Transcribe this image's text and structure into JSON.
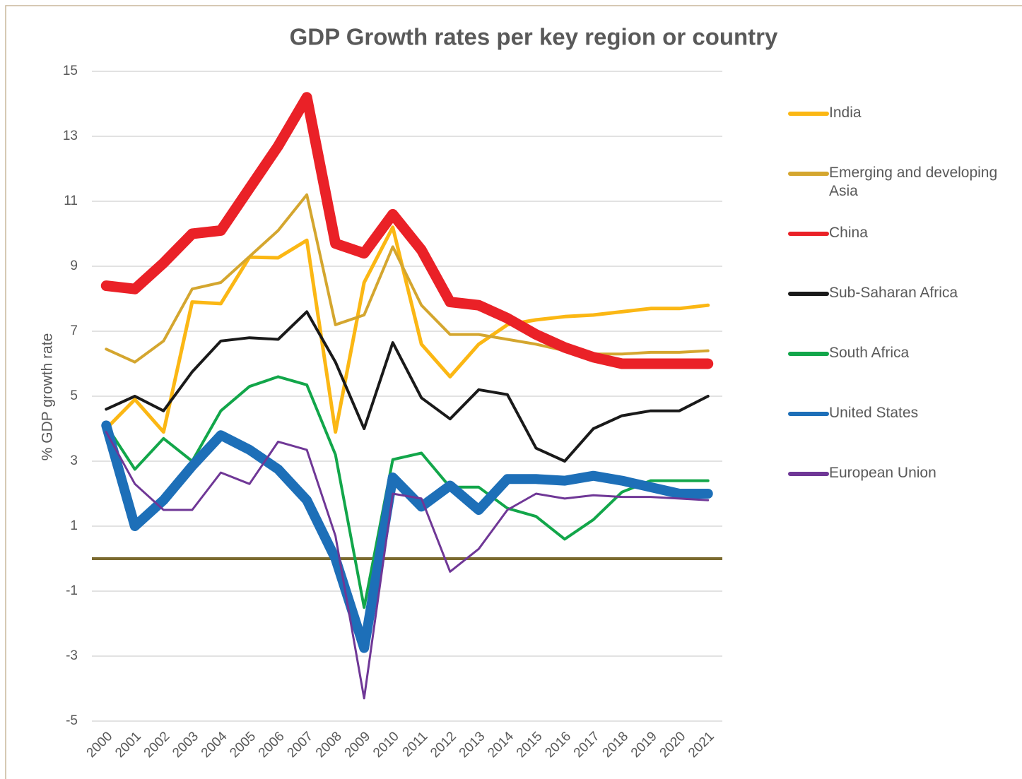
{
  "chart_data": {
    "type": "line",
    "title": "GDP Growth rates per key region or country",
    "y_label": "% GDP growth rate",
    "categories": [
      "2000",
      "2001",
      "2002",
      "2003",
      "2004",
      "2005",
      "2006",
      "2007",
      "2008",
      "2009",
      "2010",
      "2011",
      "2012",
      "2013",
      "2014",
      "2015",
      "2016",
      "2017",
      "2018",
      "2019",
      "2020",
      "2021"
    ],
    "ylim": [
      -5,
      15
    ],
    "yticks": [
      -5,
      -3,
      -1,
      1,
      3,
      5,
      7,
      9,
      11,
      13,
      15
    ],
    "grid": true,
    "reference_line": {
      "value": 0,
      "color": "#7b6a2f"
    },
    "legend": "right",
    "series": [
      {
        "name": "India",
        "color": "#fbb714",
        "line_width": 5,
        "values": [
          4.0,
          4.9,
          3.9,
          7.9,
          7.85,
          9.28,
          9.26,
          9.8,
          3.9,
          8.5,
          10.2,
          6.6,
          5.6,
          6.6,
          7.2,
          7.35,
          7.45,
          7.5,
          7.6,
          7.7,
          7.7,
          7.8
        ]
      },
      {
        "name": "Emerging and developing Asia",
        "color": "#d4a62f",
        "line_width": 4,
        "values": [
          6.45,
          6.05,
          6.7,
          8.3,
          8.5,
          9.3,
          10.1,
          11.2,
          7.2,
          7.5,
          9.6,
          7.8,
          6.9,
          6.9,
          6.75,
          6.6,
          6.4,
          6.3,
          6.3,
          6.35,
          6.35,
          6.4
        ]
      },
      {
        "name": "China",
        "color": "#ea2127",
        "line_width": 15,
        "values": [
          8.4,
          8.3,
          9.1,
          10.0,
          10.1,
          11.4,
          12.7,
          14.2,
          9.7,
          9.4,
          10.6,
          9.5,
          7.9,
          7.8,
          7.4,
          6.9,
          6.5,
          6.2,
          6.0,
          6.0,
          6.0,
          6.0
        ]
      },
      {
        "name": "Sub-Saharan Africa",
        "color": "#1a1a1a",
        "line_width": 4,
        "values": [
          4.6,
          5.0,
          4.55,
          5.75,
          6.7,
          6.8,
          6.75,
          7.6,
          6.05,
          4.0,
          6.65,
          4.95,
          4.3,
          5.2,
          5.05,
          3.4,
          3.0,
          4.0,
          4.4,
          4.55,
          4.55,
          5.0
        ]
      },
      {
        "name": "South Africa",
        "color": "#12a64a",
        "line_width": 4,
        "values": [
          4.1,
          2.75,
          3.7,
          3.0,
          4.55,
          5.3,
          5.6,
          5.35,
          3.2,
          -1.5,
          3.05,
          3.25,
          2.2,
          2.2,
          1.55,
          1.3,
          0.6,
          1.2,
          2.05,
          2.4,
          2.4,
          2.4
        ]
      },
      {
        "name": "United States",
        "color": "#1d6fb8",
        "line_width": 14,
        "values": [
          4.1,
          1.0,
          1.8,
          2.85,
          3.8,
          3.35,
          2.75,
          1.8,
          0.0,
          -2.75,
          2.5,
          1.6,
          2.25,
          1.5,
          2.45,
          2.45,
          2.4,
          2.55,
          2.4,
          2.2,
          2.0,
          2.0
        ]
      },
      {
        "name": "European Union",
        "color": "#6f3796",
        "line_width": 3,
        "values": [
          3.9,
          2.3,
          1.5,
          1.5,
          2.65,
          2.3,
          3.6,
          3.35,
          0.7,
          -4.3,
          2.0,
          1.85,
          -0.4,
          0.3,
          1.5,
          2.0,
          1.85,
          1.95,
          1.9,
          1.9,
          1.85,
          1.8
        ]
      }
    ]
  }
}
